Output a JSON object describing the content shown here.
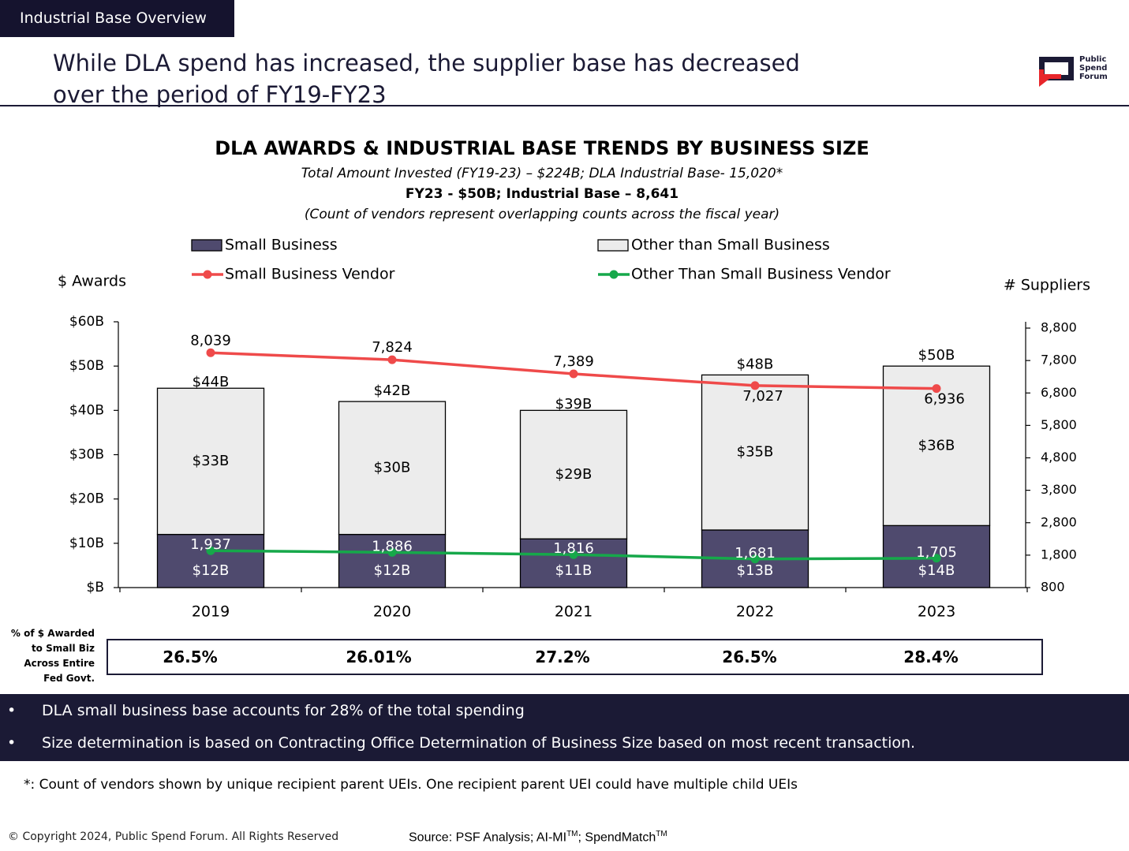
{
  "header": {
    "tag": "Industrial Base Overview",
    "title": "While DLA spend has increased, the supplier base has decreased over the period of FY19-FY23",
    "logo": "Public Spend Forum"
  },
  "chart_data": {
    "type": "bar",
    "stacked": true,
    "title": "DLA AWARDS & INDUSTRIAL BASE TRENDS BY BUSINESS SIZE",
    "subtitles": [
      "Total Amount Invested (FY19-23) – $224B; DLA Industrial Base- 15,020*",
      "FY23 - $50B; Industrial Base – 8,641",
      "(Count of vendors represent overlapping counts across the fiscal year)"
    ],
    "y_label": "$ Awards",
    "y2_label": "# Suppliers",
    "categories": [
      "2019",
      "2020",
      "2021",
      "2022",
      "2023"
    ],
    "series": [
      {
        "name": "Small Business",
        "type": "bar",
        "color": "#4f4a6e",
        "values": [
          12,
          12,
          11,
          13,
          14
        ],
        "value_labels": [
          "$12B",
          "$12B",
          "$11B",
          "$13B",
          "$14B"
        ]
      },
      {
        "name": "Other than Small Business",
        "type": "bar",
        "color": "#ececec",
        "values": [
          33,
          30,
          29,
          35,
          36
        ],
        "value_labels": [
          "$33B",
          "$30B",
          "$29B",
          "$35B",
          "$36B"
        ]
      },
      {
        "name": "Small Business Vendor",
        "type": "line",
        "axis": "y2",
        "color": "#ef4a4a",
        "values": [
          8039,
          7824,
          7389,
          7027,
          6936
        ],
        "value_labels": [
          "8,039",
          "7,824",
          "7,389",
          "7,027",
          "6,936"
        ]
      },
      {
        "name": "Other Than Small Business Vendor",
        "type": "line",
        "axis": "y2",
        "color": "#16a84a",
        "values": [
          1937,
          1886,
          1816,
          1681,
          1705
        ],
        "value_labels": [
          "1,937",
          "1,886",
          "1,816",
          "1,681",
          "1,705"
        ]
      }
    ],
    "totals": {
      "values": [
        44,
        42,
        39,
        48,
        50
      ],
      "value_labels": [
        "$44B",
        "$42B",
        "$39B",
        "$48B",
        "$50B"
      ]
    },
    "ylim": [
      0,
      60
    ],
    "yticks": [
      {
        "value": 0,
        "label": "$B"
      },
      {
        "value": 10,
        "label": "$10B"
      },
      {
        "value": 20,
        "label": "$20B"
      },
      {
        "value": 30,
        "label": "$30B"
      },
      {
        "value": 40,
        "label": "$40B"
      },
      {
        "value": 50,
        "label": "$50B"
      },
      {
        "value": 60,
        "label": "$60B"
      }
    ],
    "y2lim": [
      800,
      8800
    ],
    "y2ticks": [
      800,
      {
        "value": 1800,
        "label": "1,800"
      },
      {
        "value": 2800,
        "label": "2,800"
      },
      {
        "value": 3800,
        "label": "3,800"
      },
      {
        "value": 4800,
        "label": "4,800"
      },
      {
        "value": 5800,
        "label": "5,800"
      },
      {
        "value": 6800,
        "label": "6,800"
      },
      {
        "value": 7800,
        "label": "7,800"
      },
      {
        "value": 8800,
        "label": "8,800"
      }
    ],
    "grid": false
  },
  "small_biz_share": {
    "label": "% of $ Awarded to Small Biz Across Entire Fed Govt.",
    "values": [
      "26.5%",
      "26.01%",
      "27.2%",
      "26.5%",
      "28.4%"
    ]
  },
  "bullets": [
    "DLA small business base accounts for 28% of the total spending",
    "Size determination is based on Contracting Office Determination of Business Size based on most recent transaction."
  ],
  "footnote": "*: Count of vendors shown by unique recipient parent UEIs. One recipient parent UEI could have multiple child UEIs",
  "copyright": "© Copyright 2024, Public Spend Forum. All Rights Reserved",
  "source": [
    "Source: PSF Analysis; AI-MI",
    "TM",
    "; SpendMatch",
    "TM"
  ]
}
